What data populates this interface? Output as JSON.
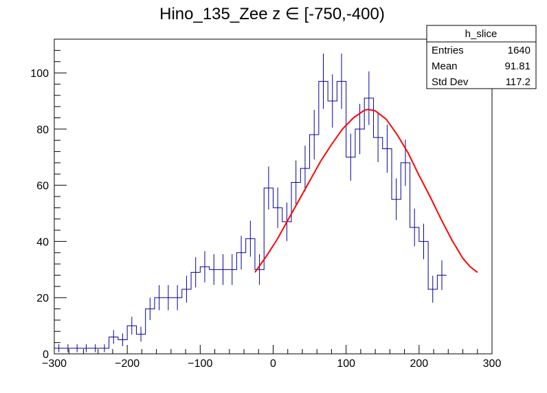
{
  "chart_data": {
    "type": "histogram",
    "title": "Hino_135_Zee z  ∈ [-750,-400)",
    "xlabel": "",
    "ylabel": "",
    "xlim": [
      -300,
      300
    ],
    "ylim": [
      0,
      112
    ],
    "x_ticks": [
      -300,
      -200,
      -100,
      0,
      100,
      200,
      300
    ],
    "y_ticks": [
      0,
      20,
      40,
      60,
      80,
      100
    ],
    "bin_width": 12.5,
    "bins": [
      {
        "x": -300.0,
        "y": 2
      },
      {
        "x": -287.5,
        "y": 2
      },
      {
        "x": -275.0,
        "y": 2
      },
      {
        "x": -262.5,
        "y": 2
      },
      {
        "x": -250.0,
        "y": 2
      },
      {
        "x": -237.5,
        "y": 2
      },
      {
        "x": -225.0,
        "y": 6
      },
      {
        "x": -212.5,
        "y": 5
      },
      {
        "x": -200.0,
        "y": 10
      },
      {
        "x": -187.5,
        "y": 7
      },
      {
        "x": -175.0,
        "y": 16
      },
      {
        "x": -162.5,
        "y": 20
      },
      {
        "x": -150.0,
        "y": 20
      },
      {
        "x": -137.5,
        "y": 20
      },
      {
        "x": -125.0,
        "y": 23
      },
      {
        "x": -112.5,
        "y": 29
      },
      {
        "x": -100.0,
        "y": 31
      },
      {
        "x": -87.5,
        "y": 30
      },
      {
        "x": -75.0,
        "y": 30
      },
      {
        "x": -62.5,
        "y": 30
      },
      {
        "x": -50.0,
        "y": 36
      },
      {
        "x": -37.5,
        "y": 41
      },
      {
        "x": -25.0,
        "y": 30
      },
      {
        "x": -12.5,
        "y": 59
      },
      {
        "x": 0.0,
        "y": 52
      },
      {
        "x": 12.5,
        "y": 47
      },
      {
        "x": 25.0,
        "y": 61
      },
      {
        "x": 37.5,
        "y": 66
      },
      {
        "x": 50.0,
        "y": 78
      },
      {
        "x": 62.5,
        "y": 97
      },
      {
        "x": 75.0,
        "y": 90
      },
      {
        "x": 87.5,
        "y": 97
      },
      {
        "x": 100.0,
        "y": 70
      },
      {
        "x": 112.5,
        "y": 80
      },
      {
        "x": 125.0,
        "y": 91
      },
      {
        "x": 137.5,
        "y": 77
      },
      {
        "x": 150.0,
        "y": 73
      },
      {
        "x": 162.5,
        "y": 55
      },
      {
        "x": 175.0,
        "y": 68
      },
      {
        "x": 187.5,
        "y": 45
      },
      {
        "x": 200.0,
        "y": 40
      },
      {
        "x": 212.5,
        "y": 23
      },
      {
        "x": 225.0,
        "y": 28
      }
    ],
    "fit": {
      "name": "gaussian fit",
      "x_range": [
        -25,
        280
      ],
      "x": [
        -25,
        -10,
        5,
        20,
        35,
        50,
        65,
        80,
        95,
        110,
        125,
        130,
        140,
        155,
        170,
        185,
        200,
        215,
        230,
        245,
        260,
        270,
        280
      ],
      "y": [
        29,
        34.5,
        40.5,
        47.5,
        54.5,
        61.5,
        68.5,
        74.5,
        80,
        84,
        86.7,
        87,
        86.5,
        83.5,
        78,
        71.5,
        63.5,
        56,
        48,
        40.5,
        34,
        31,
        29
      ]
    },
    "stats_box": {
      "title": "h_slice",
      "rows": [
        {
          "label": "Entries",
          "value": "1640"
        },
        {
          "label": "Mean",
          "value": "91.81"
        },
        {
          "label": "Std Dev",
          "value": "117.2"
        }
      ]
    },
    "colors": {
      "histogram": "#000099",
      "fit": "#ff0000",
      "axis": "#000000"
    }
  }
}
